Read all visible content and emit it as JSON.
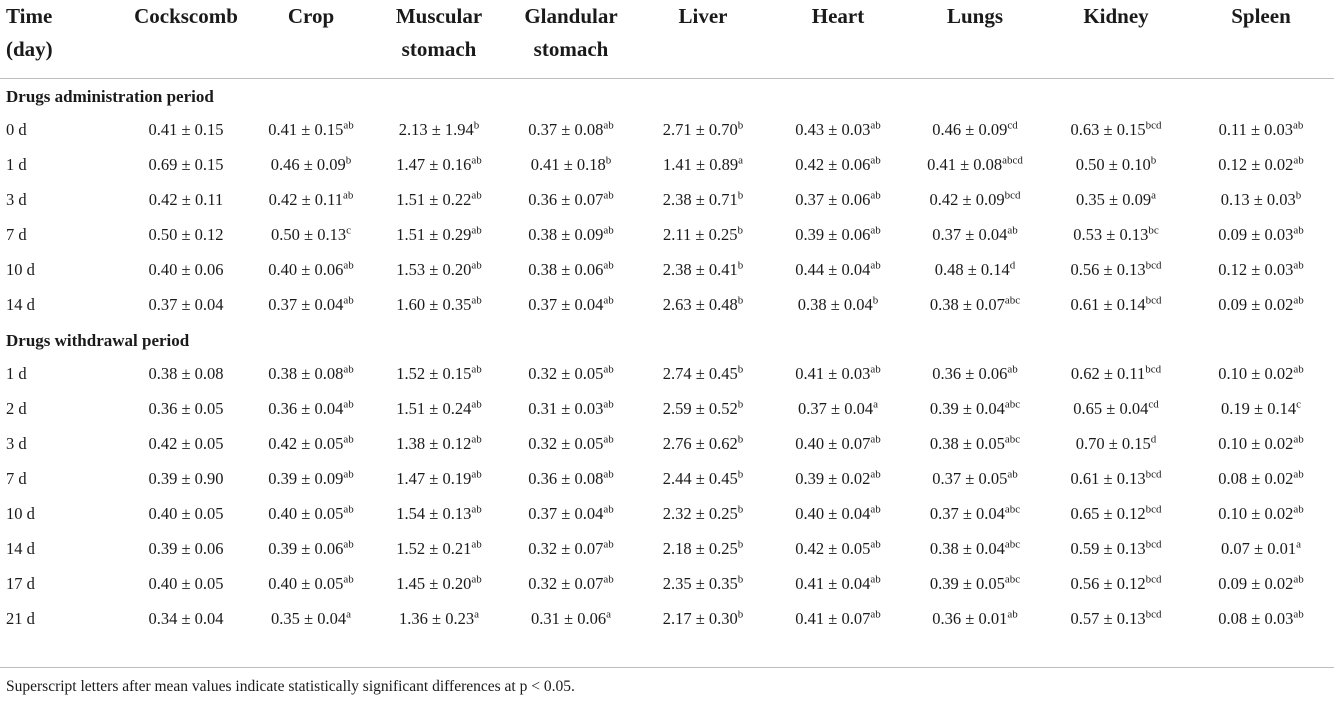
{
  "headers": [
    "Time (day)",
    "Cockscomb",
    "Crop",
    "Muscular stomach",
    "Glandular stomach",
    "Liver",
    "Heart",
    "Lungs",
    "Kidney",
    "Spleen"
  ],
  "sections": [
    {
      "title": "Drugs administration period",
      "rows": [
        {
          "day": "0 d",
          "cells": [
            [
              "0.41 ± 0.15",
              ""
            ],
            [
              "0.41 ± 0.15",
              "ab"
            ],
            [
              "2.13 ± 1.94",
              "b"
            ],
            [
              "0.37 ± 0.08",
              "ab"
            ],
            [
              "2.71 ± 0.70",
              "b"
            ],
            [
              "0.43 ± 0.03",
              "ab"
            ],
            [
              "0.46 ± 0.09",
              "cd"
            ],
            [
              "0.63 ± 0.15",
              "bcd"
            ],
            [
              "0.11 ± 0.03",
              "ab"
            ]
          ]
        },
        {
          "day": "1 d",
          "cells": [
            [
              "0.69 ± 0.15",
              ""
            ],
            [
              "0.46 ± 0.09",
              "b"
            ],
            [
              "1.47 ± 0.16",
              "ab"
            ],
            [
              "0.41 ± 0.18",
              "b"
            ],
            [
              "1.41 ± 0.89",
              "a"
            ],
            [
              "0.42 ± 0.06",
              "ab"
            ],
            [
              "0.41 ± 0.08",
              "abcd"
            ],
            [
              "0.50 ± 0.10",
              "b"
            ],
            [
              "0.12 ± 0.02",
              "ab"
            ]
          ]
        },
        {
          "day": "3 d",
          "cells": [
            [
              "0.42 ± 0.11",
              ""
            ],
            [
              "0.42 ± 0.11",
              "ab"
            ],
            [
              "1.51 ± 0.22",
              "ab"
            ],
            [
              "0.36 ± 0.07",
              "ab"
            ],
            [
              "2.38 ± 0.71",
              "b"
            ],
            [
              "0.37 ± 0.06",
              "ab"
            ],
            [
              "0.42 ± 0.09",
              "bcd"
            ],
            [
              "0.35 ± 0.09",
              "a"
            ],
            [
              "0.13 ± 0.03",
              "b"
            ]
          ]
        },
        {
          "day": "7 d",
          "cells": [
            [
              "0.50 ± 0.12",
              ""
            ],
            [
              "0.50 ± 0.13",
              "c"
            ],
            [
              "1.51 ± 0.29",
              "ab"
            ],
            [
              "0.38 ± 0.09",
              "ab"
            ],
            [
              "2.11 ± 0.25",
              "b"
            ],
            [
              "0.39 ± 0.06",
              "ab"
            ],
            [
              "0.37 ± 0.04",
              "ab"
            ],
            [
              "0.53 ± 0.13",
              "bc"
            ],
            [
              "0.09 ± 0.03",
              "ab"
            ]
          ]
        },
        {
          "day": "10 d",
          "cells": [
            [
              "0.40 ± 0.06",
              ""
            ],
            [
              "0.40 ± 0.06",
              "ab"
            ],
            [
              "1.53 ± 0.20",
              "ab"
            ],
            [
              "0.38 ± 0.06",
              "ab"
            ],
            [
              "2.38 ± 0.41",
              "b"
            ],
            [
              "0.44 ± 0.04",
              "ab"
            ],
            [
              "0.48 ± 0.14",
              "d"
            ],
            [
              "0.56 ± 0.13",
              "bcd"
            ],
            [
              "0.12 ± 0.03",
              "ab"
            ]
          ]
        },
        {
          "day": "14 d",
          "cells": [
            [
              "0.37 ± 0.04",
              ""
            ],
            [
              "0.37 ± 0.04",
              "ab"
            ],
            [
              "1.60 ± 0.35",
              "ab"
            ],
            [
              "0.37 ± 0.04",
              "ab"
            ],
            [
              "2.63 ± 0.48",
              "b"
            ],
            [
              "0.38 ± 0.04",
              "b"
            ],
            [
              "0.38 ± 0.07",
              "abc"
            ],
            [
              "0.61 ± 0.14",
              "bcd"
            ],
            [
              "0.09 ± 0.02",
              "ab"
            ]
          ]
        }
      ]
    },
    {
      "title": "Drugs withdrawal period",
      "rows": [
        {
          "day": "1 d",
          "cells": [
            [
              "0.38 ± 0.08",
              ""
            ],
            [
              "0.38 ± 0.08",
              "ab"
            ],
            [
              "1.52 ± 0.15",
              "ab"
            ],
            [
              "0.32 ± 0.05",
              "ab"
            ],
            [
              "2.74 ± 0.45",
              "b"
            ],
            [
              "0.41 ± 0.03",
              "ab"
            ],
            [
              "0.36 ± 0.06",
              "ab"
            ],
            [
              "0.62 ± 0.11",
              "bcd"
            ],
            [
              "0.10 ± 0.02",
              "ab"
            ]
          ]
        },
        {
          "day": "2 d",
          "cells": [
            [
              "0.36 ± 0.05",
              ""
            ],
            [
              "0.36 ± 0.04",
              "ab"
            ],
            [
              "1.51 ± 0.24",
              "ab"
            ],
            [
              "0.31 ± 0.03",
              "ab"
            ],
            [
              "2.59 ± 0.52",
              "b"
            ],
            [
              "0.37 ± 0.04",
              "a"
            ],
            [
              "0.39 ± 0.04",
              "abc"
            ],
            [
              "0.65 ± 0.04",
              "cd"
            ],
            [
              "0.19 ± 0.14",
              "c"
            ]
          ]
        },
        {
          "day": "3 d",
          "cells": [
            [
              "0.42 ± 0.05",
              ""
            ],
            [
              "0.42 ± 0.05",
              "ab"
            ],
            [
              "1.38 ± 0.12",
              "ab"
            ],
            [
              "0.32 ± 0.05",
              "ab"
            ],
            [
              "2.76 ± 0.62",
              "b"
            ],
            [
              "0.40 ± 0.07",
              "ab"
            ],
            [
              "0.38 ± 0.05",
              "abc"
            ],
            [
              "0.70 ± 0.15",
              "d"
            ],
            [
              "0.10 ± 0.02",
              "ab"
            ]
          ]
        },
        {
          "day": "7 d",
          "cells": [
            [
              "0.39 ± 0.90",
              ""
            ],
            [
              "0.39 ± 0.09",
              "ab"
            ],
            [
              "1.47 ± 0.19",
              "ab"
            ],
            [
              "0.36 ± 0.08",
              "ab"
            ],
            [
              "2.44 ± 0.45",
              "b"
            ],
            [
              "0.39 ± 0.02",
              "ab"
            ],
            [
              "0.37 ± 0.05",
              "ab"
            ],
            [
              "0.61 ± 0.13",
              "bcd"
            ],
            [
              "0.08 ± 0.02",
              "ab"
            ]
          ]
        },
        {
          "day": "10 d",
          "cells": [
            [
              "0.40 ± 0.05",
              ""
            ],
            [
              "0.40 ± 0.05",
              "ab"
            ],
            [
              "1.54 ± 0.13",
              "ab"
            ],
            [
              "0.37 ± 0.04",
              "ab"
            ],
            [
              "2.32 ± 0.25",
              "b"
            ],
            [
              "0.40 ± 0.04",
              "ab"
            ],
            [
              "0.37 ± 0.04",
              "abc"
            ],
            [
              "0.65 ± 0.12",
              "bcd"
            ],
            [
              "0.10 ± 0.02",
              "ab"
            ]
          ]
        },
        {
          "day": "14 d",
          "cells": [
            [
              "0.39 ± 0.06",
              ""
            ],
            [
              "0.39 ± 0.06",
              "ab"
            ],
            [
              "1.52 ± 0.21",
              "ab"
            ],
            [
              "0.32 ± 0.07",
              "ab"
            ],
            [
              "2.18 ± 0.25",
              "b"
            ],
            [
              "0.42 ± 0.05",
              "ab"
            ],
            [
              "0.38 ± 0.04",
              "abc"
            ],
            [
              "0.59 ± 0.13",
              "bcd"
            ],
            [
              "0.07 ± 0.01",
              "a"
            ]
          ]
        },
        {
          "day": "17 d",
          "cells": [
            [
              "0.40 ± 0.05",
              ""
            ],
            [
              "0.40 ± 0.05",
              "ab"
            ],
            [
              "1.45 ± 0.20",
              "ab"
            ],
            [
              "0.32 ± 0.07",
              "ab"
            ],
            [
              "2.35 ± 0.35",
              "b"
            ],
            [
              "0.41 ± 0.04",
              "ab"
            ],
            [
              "0.39 ± 0.05",
              "abc"
            ],
            [
              "0.56 ± 0.12",
              "bcd"
            ],
            [
              "0.09 ± 0.02",
              "ab"
            ]
          ]
        },
        {
          "day": "21 d",
          "cells": [
            [
              "0.34 ± 0.04",
              ""
            ],
            [
              "0.35 ± 0.04",
              "a"
            ],
            [
              "1.36 ± 0.23",
              "a"
            ],
            [
              "0.31 ± 0.06",
              "a"
            ],
            [
              "2.17 ± 0.30",
              "b"
            ],
            [
              "0.41 ± 0.07",
              "ab"
            ],
            [
              "0.36 ± 0.01",
              "ab"
            ],
            [
              "0.57 ± 0.13",
              "bcd"
            ],
            [
              "0.08 ± 0.03",
              "ab"
            ]
          ]
        }
      ]
    }
  ],
  "footnote": "Superscript letters after mean values indicate statistically significant differences at p < 0.05."
}
